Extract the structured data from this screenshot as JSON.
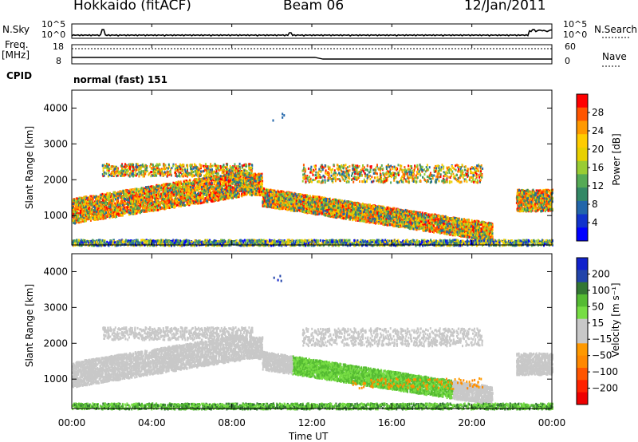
{
  "header": {
    "station": "Hokkaido (fitACF)",
    "beam": "Beam 06",
    "date": "12/Jan/2011"
  },
  "aux_panels": {
    "nsky_label": "N.Sky",
    "nsearch_label": "N.Search",
    "freq_label_top": "Freq.",
    "freq_label_unit": "[MHz]",
    "nave_label": "Nave",
    "cpid_label": "CPID",
    "cpid_text": "normal (fast) 151",
    "noise_ticks": [
      "10^5",
      "10^0"
    ],
    "noise_ticks_right": [
      "10^5",
      "10^0"
    ],
    "freq_ticks": [
      "18",
      "8"
    ],
    "nave_ticks": [
      "60",
      "0"
    ]
  },
  "chart_data": [
    {
      "type": "heatmap",
      "panel": "power",
      "ylabel": "Slant Range [km]",
      "xlabel": "Time UT",
      "x_ticks": [
        "00:00",
        "04:00",
        "08:00",
        "12:00",
        "16:00",
        "20:00",
        "00:00"
      ],
      "x_range_hours": [
        0,
        24
      ],
      "ylim": [
        180,
        4500
      ],
      "y_ticks": [
        1000,
        2000,
        3000,
        4000
      ],
      "colorbar": {
        "label": "Power [dB]",
        "ticks": [
          "28",
          "24",
          "20",
          "16",
          "12",
          "8",
          "4"
        ],
        "colors": [
          "#ff0000",
          "#ff5500",
          "#ff9900",
          "#ffcc00",
          "#e8d000",
          "#99cc33",
          "#55aa55",
          "#338866",
          "#2266aa",
          "#1133cc",
          "#0000ff"
        ]
      }
    },
    {
      "type": "heatmap",
      "panel": "velocity",
      "ylabel": "Slant Range [km]",
      "xlabel": "Time UT",
      "x_ticks": [
        "00:00",
        "04:00",
        "08:00",
        "12:00",
        "16:00",
        "20:00",
        "00:00"
      ],
      "x_range_hours": [
        0,
        24
      ],
      "ylim": [
        180,
        4500
      ],
      "y_ticks": [
        1000,
        2000,
        3000,
        4000
      ],
      "colorbar": {
        "label": "Velocity [m s⁻¹]",
        "ticks": [
          "200",
          "100",
          "50",
          "15",
          "−15",
          "−50",
          "−100",
          "−200"
        ],
        "colors": [
          "#1122cc",
          "#2244aa",
          "#337733",
          "#55bb33",
          "#77dd44",
          "#c8c8c8",
          "#c8c8c8",
          "#ff9900",
          "#ff8800",
          "#ff5500",
          "#ff2200",
          "#ee0000"
        ]
      }
    }
  ]
}
